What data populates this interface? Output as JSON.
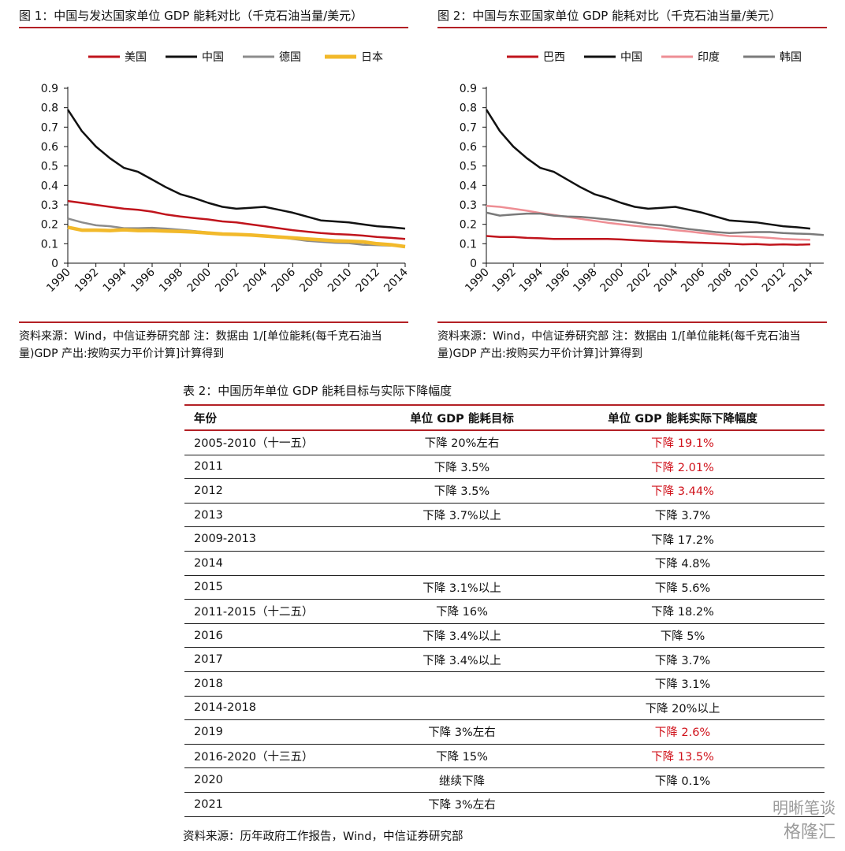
{
  "fig1": {
    "title": "图 1：中国与发达国家单位 GDP 能耗对比（千克石油当量/美元）",
    "source": "资料来源：Wind，中信证券研究部 注：数据由 1/[单位能耗(每千克石油当量)GDP 产出:按购买力平价计算]计算得到"
  },
  "fig2": {
    "title": "图 2：中国与东亚国家单位 GDP 能耗对比（千克石油当量/美元）",
    "source": "资料来源：Wind，中信证券研究部 注：数据由 1/[单位能耗(每千克石油当量)GDP 产出:按购买力平价计算]计算得到"
  },
  "chart_data": [
    {
      "type": "line",
      "title": "图 1：中国与发达国家单位 GDP 能耗对比（千克石油当量/美元）",
      "x": [
        1990,
        1991,
        1992,
        1993,
        1994,
        1995,
        1996,
        1997,
        1998,
        1999,
        2000,
        2001,
        2002,
        2003,
        2004,
        2005,
        2006,
        2007,
        2008,
        2009,
        2010,
        2011,
        2012,
        2013,
        2014
      ],
      "x_ticks": [
        "1990",
        "1992",
        "1994",
        "1996",
        "1998",
        "2000",
        "2002",
        "2004",
        "2006",
        "2008",
        "2010",
        "2012",
        "2014"
      ],
      "ylim": [
        0,
        0.9
      ],
      "y_ticks": [
        "0",
        "0.1",
        "0.2",
        "0.3",
        "0.4",
        "0.5",
        "0.6",
        "0.7",
        "0.8",
        "0.9"
      ],
      "legend_position": "top",
      "grid": false,
      "series": [
        {
          "name": "美国",
          "color": "#c0141c",
          "values": [
            0.32,
            0.31,
            0.3,
            0.29,
            0.28,
            0.275,
            0.265,
            0.25,
            0.24,
            0.232,
            0.225,
            0.215,
            0.21,
            0.2,
            0.19,
            0.18,
            0.17,
            0.162,
            0.155,
            0.15,
            0.147,
            0.142,
            0.135,
            0.13,
            0.125
          ]
        },
        {
          "name": "中国",
          "color": "#111111",
          "values": [
            0.79,
            0.68,
            0.6,
            0.54,
            0.49,
            0.47,
            0.43,
            0.39,
            0.355,
            0.335,
            0.31,
            0.29,
            0.28,
            0.285,
            0.29,
            0.275,
            0.26,
            0.24,
            0.22,
            0.215,
            0.21,
            0.2,
            0.19,
            0.185,
            0.178
          ]
        },
        {
          "name": "德国",
          "color": "#8c8c8c",
          "values": [
            0.23,
            0.21,
            0.195,
            0.19,
            0.18,
            0.18,
            0.182,
            0.178,
            0.172,
            0.165,
            0.158,
            0.152,
            0.148,
            0.145,
            0.14,
            0.135,
            0.125,
            0.115,
            0.11,
            0.105,
            0.103,
            0.095,
            0.093,
            0.09,
            0.088
          ]
        },
        {
          "name": "日本",
          "color": "#f2b92a",
          "values": [
            0.185,
            0.17,
            0.17,
            0.168,
            0.172,
            0.168,
            0.168,
            0.165,
            0.163,
            0.16,
            0.155,
            0.15,
            0.148,
            0.145,
            0.14,
            0.135,
            0.13,
            0.125,
            0.12,
            0.115,
            0.113,
            0.11,
            0.1,
            0.095,
            0.085
          ]
        }
      ]
    },
    {
      "type": "line",
      "title": "图 2：中国与东亚国家单位 GDP 能耗对比（千克石油当量/美元）",
      "x": [
        1990,
        1991,
        1992,
        1993,
        1994,
        1995,
        1996,
        1997,
        1998,
        1999,
        2000,
        2001,
        2002,
        2003,
        2004,
        2005,
        2006,
        2007,
        2008,
        2009,
        2010,
        2011,
        2012,
        2013,
        2014,
        2015
      ],
      "x_ticks": [
        "1990",
        "1992",
        "1994",
        "1996",
        "1998",
        "2000",
        "2002",
        "2004",
        "2006",
        "2008",
        "2010",
        "2012",
        "2014"
      ],
      "ylim": [
        0,
        0.9
      ],
      "y_ticks": [
        "0",
        "0.1",
        "0.2",
        "0.3",
        "0.4",
        "0.5",
        "0.6",
        "0.7",
        "0.8",
        "0.9"
      ],
      "legend_position": "top",
      "grid": false,
      "series": [
        {
          "name": "巴西",
          "color": "#c0141c",
          "values": [
            0.14,
            0.135,
            0.135,
            0.13,
            0.128,
            0.125,
            0.125,
            0.125,
            0.125,
            0.125,
            0.122,
            0.118,
            0.115,
            0.112,
            0.11,
            0.107,
            0.105,
            0.102,
            0.1,
            0.097,
            0.098,
            0.095,
            0.097,
            0.095,
            0.097,
            null
          ]
        },
        {
          "name": "中国",
          "color": "#111111",
          "values": [
            0.79,
            0.68,
            0.6,
            0.54,
            0.49,
            0.47,
            0.43,
            0.39,
            0.355,
            0.335,
            0.31,
            0.29,
            0.28,
            0.285,
            0.29,
            0.275,
            0.26,
            0.24,
            0.22,
            0.215,
            0.21,
            0.2,
            0.19,
            0.185,
            0.178,
            null
          ]
        },
        {
          "name": "印度",
          "color": "#ee8e94",
          "values": [
            0.295,
            0.29,
            0.28,
            0.27,
            0.258,
            0.248,
            0.238,
            0.228,
            0.218,
            0.208,
            0.2,
            0.192,
            0.185,
            0.178,
            0.17,
            0.163,
            0.155,
            0.148,
            0.14,
            0.138,
            0.135,
            0.13,
            0.125,
            0.122,
            0.12,
            null
          ]
        },
        {
          "name": "韩国",
          "color": "#7a7a7a",
          "values": [
            0.26,
            0.245,
            0.25,
            0.255,
            0.255,
            0.245,
            0.24,
            0.238,
            0.232,
            0.225,
            0.218,
            0.21,
            0.2,
            0.195,
            0.185,
            0.175,
            0.168,
            0.16,
            0.155,
            0.158,
            0.16,
            0.16,
            0.155,
            0.152,
            0.15,
            0.145
          ]
        }
      ]
    }
  ],
  "table": {
    "title": "表 2：中国历年单位 GDP 能耗目标与实际下降幅度",
    "headers": [
      "年份",
      "单位 GDP 能耗目标",
      "单位 GDP 能耗实际下降幅度"
    ],
    "highlight_color": "#d0121b",
    "rows": [
      {
        "year": "2005-2010（十一五）",
        "target": "下降 20%左右",
        "actual": "下降 19.1%",
        "highlight": true
      },
      {
        "year": "2011",
        "target": "下降 3.5%",
        "actual": "下降 2.01%",
        "highlight": true
      },
      {
        "year": "2012",
        "target": "下降 3.5%",
        "actual": "下降 3.44%",
        "highlight": true
      },
      {
        "year": "2013",
        "target": "下降 3.7%以上",
        "actual": "下降 3.7%",
        "highlight": false
      },
      {
        "year": "2009-2013",
        "target": "",
        "actual": "下降 17.2%",
        "highlight": false
      },
      {
        "year": "2014",
        "target": "",
        "actual": "下降 4.8%",
        "highlight": false
      },
      {
        "year": "2015",
        "target": "下降 3.1%以上",
        "actual": "下降 5.6%",
        "highlight": false
      },
      {
        "year": "2011-2015（十二五）",
        "target": "下降 16%",
        "actual": "下降 18.2%",
        "highlight": false
      },
      {
        "year": "2016",
        "target": "下降 3.4%以上",
        "actual": "下降 5%",
        "highlight": false
      },
      {
        "year": "2017",
        "target": "下降 3.4%以上",
        "actual": "下降 3.7%",
        "highlight": false
      },
      {
        "year": "2018",
        "target": "",
        "actual": "下降 3.1%",
        "highlight": false
      },
      {
        "year": "2014-2018",
        "target": "",
        "actual": "下降 20%以上",
        "highlight": false
      },
      {
        "year": "2019",
        "target": "下降 3%左右",
        "actual": "下降 2.6%",
        "highlight": true
      },
      {
        "year": "2016-2020（十三五）",
        "target": "下降 15%",
        "actual": "下降 13.5%",
        "highlight": true
      },
      {
        "year": "2020",
        "target": "继续下降",
        "actual": "下降 0.1%",
        "highlight": false
      },
      {
        "year": "2021",
        "target": "下降 3%左右",
        "actual": "",
        "highlight": false
      }
    ],
    "source": "资料来源：历年政府工作报告，Wind，中信证券研究部"
  },
  "watermark": {
    "line1": "明晰笔谈",
    "line2": "格隆汇"
  }
}
